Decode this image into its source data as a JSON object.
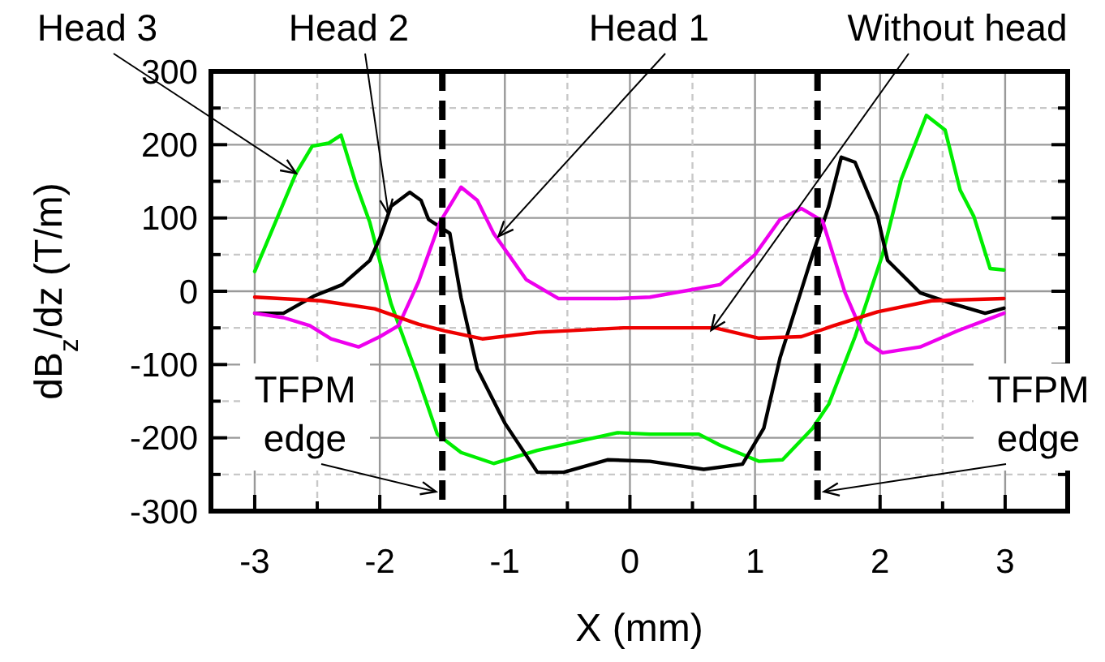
{
  "chart_data": {
    "type": "line",
    "xlabel": "X (mm)",
    "ylabel": "dB$_{z}$/dz (T/m)",
    "xlim": [
      -3.35,
      3.5
    ],
    "ylim": [
      -300,
      300
    ],
    "xticks": [
      -3,
      {
        "value": -2.5,
        "label": null
      },
      -2,
      -1,
      {
        "value": -0.5,
        "label": null
      },
      0,
      {
        "value": 0.5,
        "label": null
      },
      1,
      2,
      {
        "value": 2.5,
        "label": null
      },
      3
    ],
    "yticks": [
      -300,
      {
        "value": -250,
        "label": null
      },
      -200,
      {
        "value": -150,
        "label": null
      },
      -100,
      {
        "value": -50,
        "label": null
      },
      0,
      {
        "value": 50,
        "label": null
      },
      100,
      {
        "value": 150,
        "label": null
      },
      200,
      {
        "value": 250,
        "label": null
      },
      300
    ],
    "grid": true,
    "marker": "none",
    "line_style": "solid",
    "series": [
      {
        "color": "#00ee00",
        "x": [
          -3,
          -2.67,
          -2.54,
          -2.41,
          -2.31,
          -2.19,
          -2.08,
          -1.91,
          -1.69,
          -1.54,
          -1.35,
          -1.09,
          -0.74,
          -0.1,
          0.16,
          0.55,
          0.72,
          1.03,
          1.22,
          1.46,
          1.59,
          1.8,
          2.02,
          2.17,
          2.37,
          2.52,
          2.64,
          2.75,
          2.88,
          2.99
        ],
        "values": [
          27,
          161,
          198,
          202,
          213,
          146,
          94,
          -17,
          -120,
          -195,
          -220,
          -235,
          -217,
          -193,
          -195,
          -195,
          -210,
          -232,
          -230,
          -187,
          -154,
          -62,
          50,
          153,
          240,
          220,
          138,
          102,
          31,
          29
        ]
      },
      {
        "color": "#000000",
        "x": [
          -3,
          -2.77,
          -2.52,
          -2.3,
          -2.08,
          -2.0,
          -1.91,
          -1.76,
          -1.67,
          -1.61,
          -1.44,
          -1.35,
          -1.22,
          -1.0,
          -0.74,
          -0.53,
          -0.18,
          0.16,
          0.59,
          0.9,
          1.07,
          1.2,
          1.46,
          1.59,
          1.69,
          1.8,
          1.98,
          2.06,
          2.32,
          2.58,
          2.84,
          2.99
        ],
        "values": [
          -30,
          -30,
          -6,
          9,
          42,
          72,
          116,
          135,
          124,
          98,
          79,
          -9,
          -106,
          -180,
          -247,
          -247,
          -230,
          -232,
          -243,
          -236,
          -187,
          -91,
          50,
          116,
          183,
          176,
          102,
          42,
          -2,
          -17,
          -30,
          -23
        ]
      },
      {
        "color": "#ee00ee",
        "x": [
          -3,
          -2.77,
          -2.56,
          -2.39,
          -2.17,
          -2.0,
          -1.85,
          -1.69,
          -1.52,
          -1.35,
          -1.22,
          -1.09,
          -0.83,
          -0.57,
          -0.1,
          0.16,
          0.72,
          1.0,
          1.2,
          1.37,
          1.54,
          1.72,
          1.89,
          2.02,
          2.32,
          2.62,
          2.99
        ],
        "values": [
          -30,
          -36,
          -47,
          -65,
          -76,
          -62,
          -47,
          13,
          94,
          142,
          124,
          79,
          16,
          -10,
          -10,
          -8,
          9,
          50,
          98,
          113,
          96,
          -2,
          -69,
          -84,
          -76,
          -54,
          -30
        ]
      },
      {
        "color": "#ee0000",
        "x": [
          -3,
          -2.47,
          -2.04,
          -1.69,
          -1.48,
          -1.18,
          -0.74,
          -0.05,
          0.68,
          1.03,
          1.37,
          1.63,
          1.98,
          2.41,
          2.99
        ],
        "values": [
          -8,
          -13,
          -24,
          -45,
          -54,
          -65,
          -56,
          -50,
          -50,
          -64,
          -62,
          -47,
          -28,
          -13,
          -10
        ]
      }
    ],
    "ref_lines": [
      {
        "axis": "x",
        "value": -1.5,
        "label": "TFPM edge",
        "color": "#000000",
        "line_style": "dashed"
      },
      {
        "axis": "x",
        "value": 1.5,
        "label": "TFPM edge",
        "color": "#000000",
        "line_style": "dashed"
      }
    ],
    "annotations": [
      {
        "text": "Head 3",
        "x": -2.67,
        "y": 161
      },
      {
        "text": "Head 2",
        "x": -1.93,
        "y": 105
      },
      {
        "text": "Head 1",
        "x": -1.05,
        "y": 75
      },
      {
        "text": "Without head",
        "x": 0.65,
        "y": -53
      }
    ]
  }
}
